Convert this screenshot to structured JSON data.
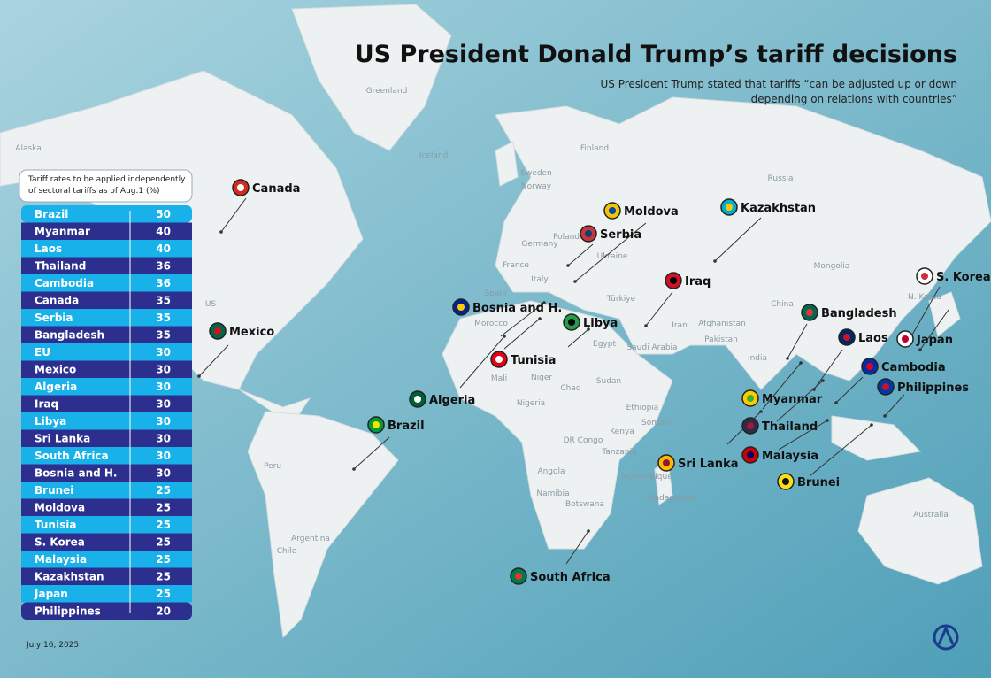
{
  "header": {
    "title": "US President Donald Trump’s tariff decisions",
    "subtitle_lines": [
      "US President Trump stated that tariffs “can be adjusted up or down",
      "depending on relations with countries”"
    ]
  },
  "table": {
    "note_lines": [
      "Tariff rates to be applied independently",
      "of sectoral tariffs as of Aug.1 (%)"
    ],
    "rows": [
      [
        "Brazil",
        50
      ],
      [
        "Myanmar",
        40
      ],
      [
        "Laos",
        40
      ],
      [
        "Thailand",
        36
      ],
      [
        "Cambodia",
        36
      ],
      [
        "Canada",
        35
      ],
      [
        "Serbia",
        35
      ],
      [
        "Bangladesh",
        35
      ],
      [
        "EU",
        30
      ],
      [
        "Mexico",
        30
      ],
      [
        "Algeria",
        30
      ],
      [
        "Iraq",
        30
      ],
      [
        "Libya",
        30
      ],
      [
        "Sri Lanka",
        30
      ],
      [
        "South Africa",
        30
      ],
      [
        "Bosnia and H.",
        30
      ],
      [
        "Brunei",
        25
      ],
      [
        "Moldova",
        25
      ],
      [
        "Tunisia",
        25
      ],
      [
        "S. Korea",
        25
      ],
      [
        "Malaysia",
        25
      ],
      [
        "Kazakhstan",
        25
      ],
      [
        "Japan",
        25
      ],
      [
        "Philippines",
        20
      ]
    ]
  },
  "map": {
    "callouts": [
      "Canada",
      "Moldova",
      "Serbia",
      "Kazakhstan",
      "Iraq",
      "S. Korea",
      "Bangladesh",
      "Laos",
      "Japan",
      "Cambodia",
      "Philippines",
      "Myanmar",
      "Thailand",
      "Malaysia",
      "Brunei",
      "Sri Lanka",
      "Bosnia and H.",
      "Libya",
      "Mexico",
      "Tunisia",
      "Algeria",
      "Brazil",
      "South Africa"
    ],
    "places": [
      "Greenland",
      "Alaska",
      "US",
      "Iceland",
      "Finland",
      "Sweden",
      "Norway",
      "Poland",
      "Germany",
      "France",
      "Ukraine",
      "Spain",
      "Italy",
      "Türkiye",
      "Russia",
      "Mongolia",
      "China",
      "N. Korea",
      "Afghanistan",
      "Pakistan",
      "Iran",
      "India",
      "Saudi Arabia",
      "Egypt",
      "Morocco",
      "Mali",
      "Niger",
      "Chad",
      "Sudan",
      "Nigeria",
      "Ethiopia",
      "Somalia",
      "Kenya",
      "DR Congo",
      "Tanzania",
      "Angola",
      "Namibia",
      "Botswana",
      "Mozambique",
      "Madagascar",
      "Peru",
      "Argentina",
      "Chile",
      "Australia"
    ]
  },
  "footer": {
    "date": "July 16, 2025"
  }
}
